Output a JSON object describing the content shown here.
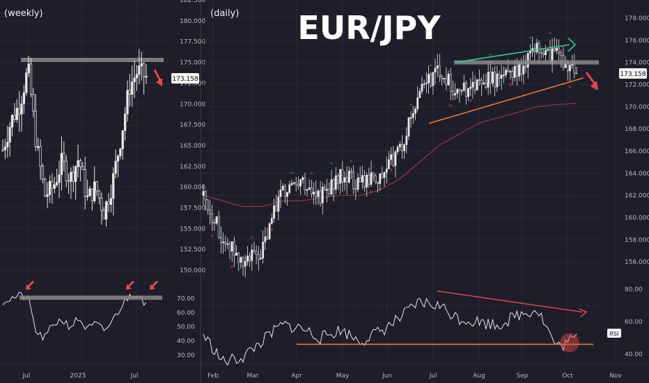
{
  "colors": {
    "background": "#1e1e2a",
    "grid": "#2a2a36",
    "candle": "#e8e8e8",
    "resistance": "#8a8a8a",
    "ma_line": "#b03a3a",
    "uptrend_line": "#f07a2a",
    "upper_trend_line": "#2fd08a",
    "arrow": "#e8484c",
    "axis_text": "#b8b8b8",
    "price_tag_bg": "#f2f2f2",
    "price_tag_text": "#111111",
    "rsi_line": "#e8e8e8",
    "marker_up": "#3fbf6f",
    "marker_down": "#e84a4a"
  },
  "title": "EUR/JPY",
  "current_price": "173.158",
  "chart_data": [
    {
      "type": "line",
      "panel": "weekly",
      "label": "(weekly)",
      "ylim": [
        149.0,
        182.5
      ],
      "yticks": [
        "182.500",
        "180.000",
        "177.500",
        "175.000",
        "172.500",
        "170.000",
        "167.500",
        "165.000",
        "162.500",
        "160.000",
        "157.500",
        "155.000",
        "152.500",
        "150.000"
      ],
      "xticks": [
        "Jul",
        "2025",
        "Jul"
      ],
      "x": [
        "2024-04",
        "2024-05",
        "2024-06",
        "2024-07",
        "2024-08",
        "2024-09",
        "2024-10",
        "2024-11",
        "2024-12",
        "2025-01",
        "2025-02",
        "2025-03",
        "2025-04",
        "2025-05",
        "2025-06",
        "2025-07",
        "2025-08",
        "2025-09"
      ],
      "values": [
        164.5,
        168.0,
        170.0,
        174.2,
        165.0,
        159.0,
        160.0,
        163.0,
        161.0,
        163.5,
        158.5,
        160.0,
        157.0,
        160.5,
        166.0,
        172.0,
        174.0,
        173.2
      ],
      "resistance": 175.3,
      "rsi": {
        "ylim": [
          25,
          85
        ],
        "yticks": [
          "70.00",
          "60.00",
          "50.00",
          "40.00",
          "30.00"
        ],
        "values": [
          68,
          70,
          72,
          70,
          45,
          42,
          52,
          55,
          50,
          56,
          48,
          52,
          47,
          54,
          64,
          72,
          74,
          66
        ],
        "resistance": 70.5
      }
    },
    {
      "type": "line",
      "panel": "daily",
      "label": "(daily)",
      "ylim": [
        154.5,
        179.0
      ],
      "yticks": [
        "178.000",
        "176.000",
        "174.000",
        "172.000",
        "170.000",
        "168.000",
        "166.000",
        "164.000",
        "162.000",
        "160.000",
        "158.000",
        "156.000"
      ],
      "xticks": [
        "Feb",
        "Mar",
        "Apr",
        "May",
        "Jun",
        "Jul",
        "Aug",
        "Sep",
        "Oct",
        "Nov"
      ],
      "x": [
        "Feb 3",
        "Feb 17",
        "Mar 3",
        "Mar 10",
        "Mar 24",
        "Apr 7",
        "Apr 21",
        "May 5",
        "May 19",
        "Jun 2",
        "Jun 16",
        "Jun 30",
        "Jul 14",
        "Jul 28",
        "Aug 11",
        "Aug 25",
        "Sep 8",
        "Sep 22",
        "Sep 29",
        "Oct 2"
      ],
      "values": [
        162.0,
        158.0,
        156.0,
        157.0,
        162.5,
        163.5,
        162.0,
        164.0,
        163.0,
        163.5,
        166.0,
        171.0,
        173.5,
        171.0,
        172.5,
        172.5,
        173.0,
        175.0,
        174.5,
        173.2
      ],
      "ma_values": [
        162.0,
        161.5,
        161.0,
        161.0,
        161.5,
        161.5,
        161.8,
        162.0,
        162.0,
        162.5,
        163.5,
        165.0,
        166.5,
        167.5,
        168.5,
        169.0,
        169.5,
        170.0,
        170.2,
        170.3
      ],
      "resistance": 174.0,
      "rsi": {
        "label": "RSI",
        "ylim": [
          35,
          85
        ],
        "yticks": [
          "80.00",
          "60.00",
          "40.00"
        ],
        "values": [
          52,
          35,
          38,
          48,
          58,
          56,
          50,
          55,
          48,
          54,
          62,
          72,
          70,
          62,
          60,
          58,
          64,
          68,
          44,
          50
        ],
        "support": 46.0
      }
    }
  ]
}
